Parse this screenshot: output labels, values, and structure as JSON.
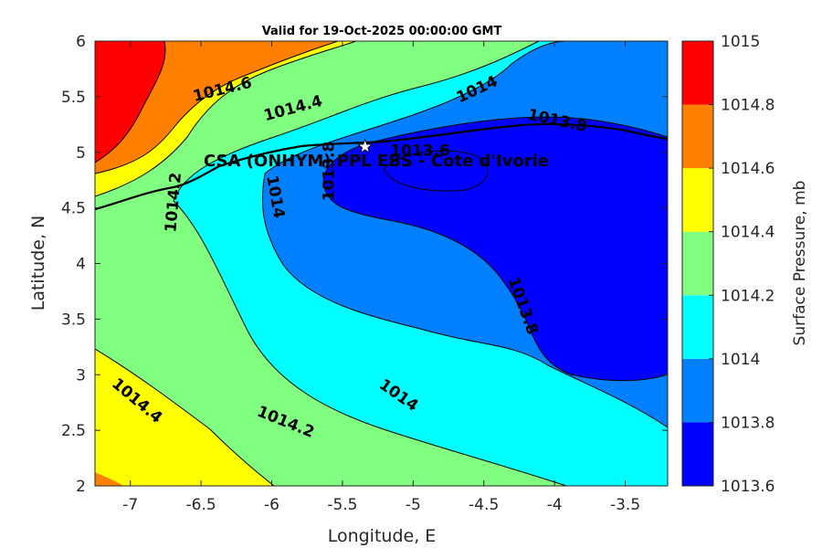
{
  "chart_data": {
    "type": "contour",
    "title": "Valid for 19-Oct-2025 00:00:00 GMT",
    "xlabel": "Longitude, E",
    "ylabel": "Latitude, N",
    "xlim": [
      -7.25,
      -3.2
    ],
    "ylim": [
      2,
      6
    ],
    "xticks": [
      -7,
      -6.5,
      -6,
      -5.5,
      -5,
      -4.5,
      -4,
      -3.5
    ],
    "xtick_labels": [
      "-7",
      "-6.5",
      "-6",
      "-5.5",
      "-5",
      "-4.5",
      "-4",
      "-3.5"
    ],
    "yticks": [
      2,
      2.5,
      3,
      3.5,
      4,
      4.5,
      5,
      5.5,
      6
    ],
    "ytick_labels": [
      "2",
      "2.5",
      "3",
      "3.5",
      "4",
      "4.5",
      "5",
      "5.5",
      "6"
    ],
    "colorbar": {
      "label": "Surface Pressure, mb",
      "levels": [
        1013.6,
        1013.8,
        1014,
        1014.2,
        1014.4,
        1014.6,
        1014.8,
        1015
      ],
      "level_labels": [
        "1013.6",
        "1013.8",
        "1014",
        "1014.2",
        "1014.4",
        "1014.6",
        "1014.8",
        "1015"
      ],
      "colors": [
        "#0000ff",
        "#0080ff",
        "#00ffff",
        "#80ff80",
        "#ffff00",
        "#ff8000",
        "#ff0000",
        "#800000"
      ]
    },
    "contour_labels": [
      {
        "text": "1014.6",
        "lon": -6.35,
        "lat": 5.57,
        "angle": -14
      },
      {
        "text": "1014.4",
        "lon": -5.85,
        "lat": 5.4,
        "angle": -15
      },
      {
        "text": "1014",
        "lon": -4.55,
        "lat": 5.57,
        "angle": -25
      },
      {
        "text": "1013.8",
        "lon": -3.98,
        "lat": 5.29,
        "angle": 12
      },
      {
        "text": "1013.6",
        "lon": -4.95,
        "lat": 5.02,
        "angle": 0
      },
      {
        "text": "1013.8",
        "lon": -5.6,
        "lat": 4.83,
        "angle": -90
      },
      {
        "text": "1014",
        "lon": -5.97,
        "lat": 4.6,
        "angle": 80
      },
      {
        "text": "1014.2",
        "lon": -6.7,
        "lat": 4.55,
        "angle": -85
      },
      {
        "text": "1013.8",
        "lon": -4.22,
        "lat": 3.62,
        "angle": 70
      },
      {
        "text": "1014",
        "lon": -5.1,
        "lat": 2.82,
        "angle": 35
      },
      {
        "text": "1014.2",
        "lon": -5.9,
        "lat": 2.58,
        "angle": 22
      },
      {
        "text": "1014.4",
        "lon": -6.95,
        "lat": 2.77,
        "angle": 40
      }
    ],
    "site": {
      "name": "CSA (ONHYM) PPL EBS  - Cote d'Ivorie",
      "lon": -5.34,
      "lat": 5.05
    }
  }
}
